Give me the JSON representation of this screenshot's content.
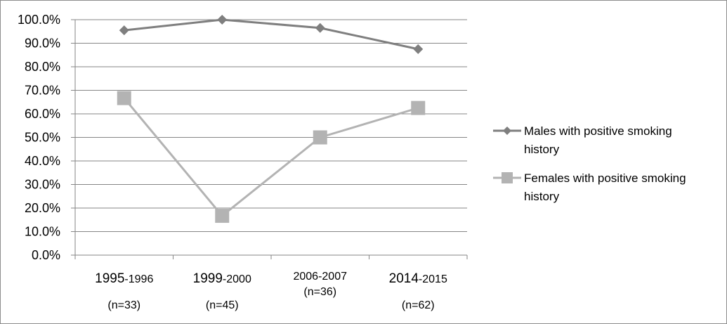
{
  "chart_data": {
    "type": "line",
    "title": "",
    "xlabel": "",
    "ylabel": "",
    "categories": [
      {
        "main": "1995",
        "rest": "-1996",
        "sub": "(n=33)"
      },
      {
        "main": "1999",
        "rest": "-2000",
        "sub": "(n=45)"
      },
      {
        "main": "2006-2007",
        "rest": "",
        "sub": "(n=36)"
      },
      {
        "main": "2014",
        "rest": "-2015",
        "sub": "(n=62)"
      }
    ],
    "ylim": [
      0,
      100
    ],
    "yticks": [
      "0.0%",
      "10.0%",
      "20.0%",
      "30.0%",
      "40.0%",
      "50.0%",
      "60.0%",
      "70.0%",
      "80.0%",
      "90.0%",
      "100.0%"
    ],
    "grid": true,
    "legend_position": "right",
    "series": [
      {
        "name": "Males with positive smoking history",
        "name_lines": [
          "Males with positive smoking",
          "history"
        ],
        "marker": "diamond",
        "color": "#7f7f7f",
        "values": [
          95.5,
          100,
          96.5,
          87.5
        ]
      },
      {
        "name": "Females with positive smoking history",
        "name_lines": [
          "Females with positive smoking",
          "history"
        ],
        "marker": "square",
        "color": "#b3b3b3",
        "values": [
          66.7,
          16.7,
          50.0,
          62.5
        ]
      }
    ]
  }
}
